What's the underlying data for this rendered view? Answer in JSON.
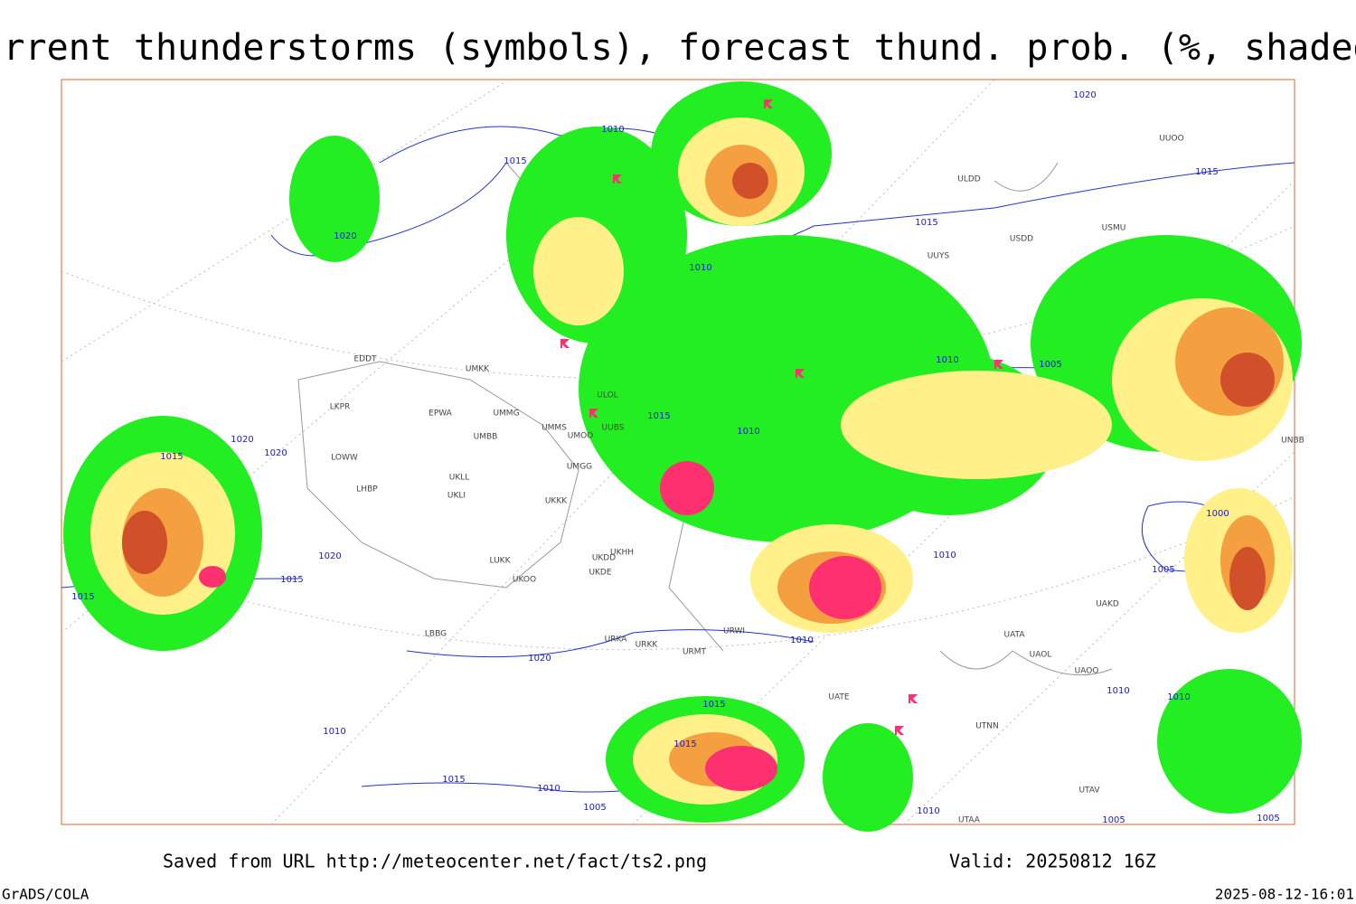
{
  "header": {
    "title": "Current thunderstorms (symbols), forecast thund. prob. (%, shaded)"
  },
  "footer": {
    "source": "Saved from URL http://meteocenter.net/fact/ts2.png",
    "valid": "Valid: 20250812 16Z",
    "software": "GrADS/COLA",
    "timestamp": "2025-08-12-16:01"
  },
  "map": {
    "isobar_labels": [
      "1020",
      "1010",
      "1015",
      "1015",
      "1020",
      "1015",
      "1010",
      "1010",
      "1005",
      "1015",
      "1010",
      "1020",
      "1020",
      "1015",
      "1000",
      "1020",
      "1015",
      "1015",
      "1010",
      "1005",
      "1010",
      "1020",
      "1015",
      "1010",
      "1010",
      "1010",
      "1015",
      "1015",
      "1010",
      "1005",
      "1010",
      "1005",
      "1005"
    ],
    "station_labels": [
      "ULDD",
      "USMU",
      "USDD",
      "UUYS",
      "UUOO",
      "EDDT",
      "UMKK",
      "ULOL",
      "LKPR",
      "EPWA",
      "UMMG",
      "UMBB",
      "UMMS",
      "UMOO",
      "UUBS",
      "LOWW",
      "UMGG",
      "LHBP",
      "UKLL",
      "UKLI",
      "UKKK",
      "LUKK",
      "UKOO",
      "UKDD",
      "UKDE",
      "UKHH",
      "LBBG",
      "URKA",
      "URKK",
      "URMT",
      "URWI",
      "UATA",
      "UAOL",
      "UAOO",
      "UAKD",
      "UTNN",
      "UATE",
      "UTAA",
      "UTAV",
      "UNBB"
    ]
  }
}
